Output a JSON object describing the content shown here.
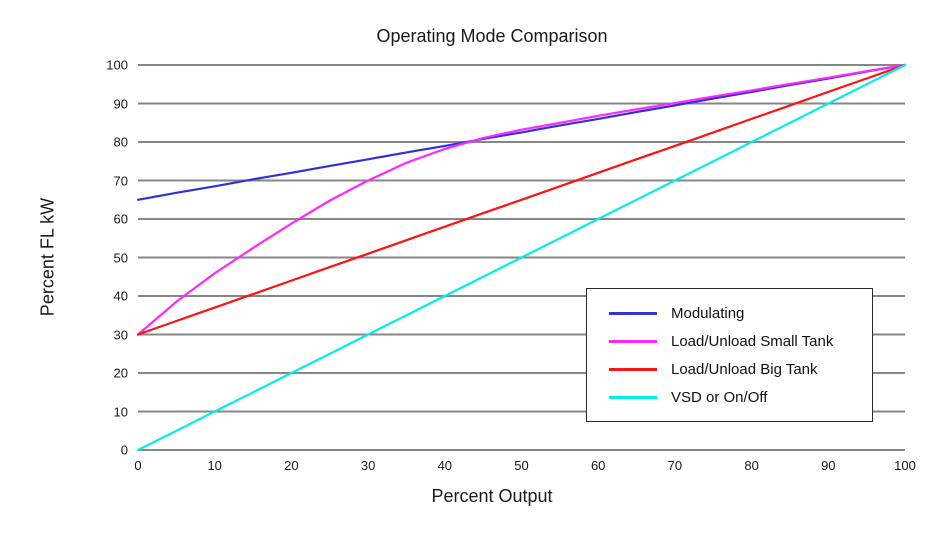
{
  "colors": {
    "grid": "#878787",
    "text": "#1a1a1a",
    "legend_border": "#2b2b2b",
    "background": "#ffffff"
  },
  "chart_data": {
    "type": "line",
    "title": "Operating Mode Comparison",
    "xlabel": "Percent Output",
    "ylabel": "Percent FL kW",
    "xlim": [
      0,
      100
    ],
    "ylim": [
      0,
      100
    ],
    "x_ticks": [
      0,
      10,
      20,
      30,
      40,
      50,
      60,
      70,
      80,
      90,
      100
    ],
    "y_ticks": [
      0,
      10,
      20,
      30,
      40,
      50,
      60,
      70,
      80,
      90,
      100
    ],
    "grid": "horizontal-only",
    "legend_position": "middle-right-inside",
    "x": [
      0,
      5,
      10,
      15,
      20,
      25,
      30,
      35,
      40,
      45,
      50,
      55,
      60,
      65,
      70,
      75,
      80,
      85,
      90,
      95,
      100
    ],
    "series": [
      {
        "name": "Modulating",
        "color": "#3030df",
        "values": [
          65,
          66.8,
          68.5,
          70.3,
          72,
          73.8,
          75.5,
          77.3,
          79,
          80.8,
          82.5,
          84.3,
          86,
          87.8,
          89.5,
          91.3,
          93,
          94.8,
          96.5,
          98.3,
          100
        ]
      },
      {
        "name": "Load/Unload Small Tank",
        "color": "#ff28ff",
        "values": [
          30,
          38.5,
          45.9,
          52.5,
          58.8,
          64.8,
          70,
          74.6,
          78.2,
          81,
          83.2,
          85,
          86.8,
          88.5,
          90.1,
          91.8,
          93.4,
          95.1,
          96.7,
          98.4,
          100
        ]
      },
      {
        "name": "Load/Unload Big Tank",
        "color": "#ff1212",
        "values": [
          30,
          33.5,
          37,
          40.5,
          44,
          47.5,
          51,
          54.5,
          58,
          61.5,
          65,
          68.5,
          72,
          75.5,
          79,
          82.5,
          86,
          89.5,
          93,
          96.5,
          100
        ]
      },
      {
        "name": "VSD or On/Off",
        "color": "#00eded",
        "values": [
          0,
          5,
          10,
          15,
          20,
          25,
          30,
          35,
          40,
          45,
          50,
          55,
          60,
          65,
          70,
          75,
          80,
          85,
          90,
          95,
          100
        ]
      }
    ]
  }
}
